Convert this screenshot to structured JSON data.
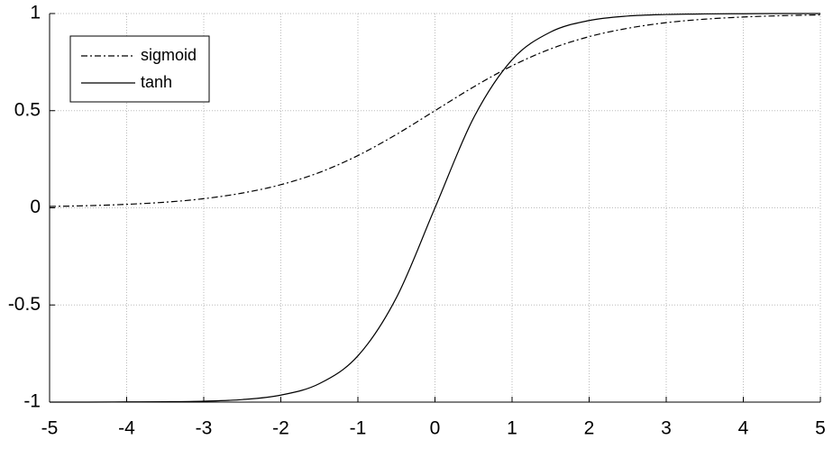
{
  "chart_data": {
    "type": "line",
    "x": [
      -5,
      -4.5,
      -4,
      -3.5,
      -3,
      -2.5,
      -2,
      -1.5,
      -1,
      -0.5,
      0,
      0.5,
      1,
      1.5,
      2,
      2.5,
      3,
      3.5,
      4,
      4.5,
      5
    ],
    "series": [
      {
        "name": "sigmoid",
        "color": "#000000",
        "dash": "dashdot",
        "values": [
          0.007,
          0.011,
          0.018,
          0.029,
          0.047,
          0.076,
          0.119,
          0.182,
          0.269,
          0.378,
          0.5,
          0.622,
          0.731,
          0.818,
          0.881,
          0.924,
          0.953,
          0.971,
          0.982,
          0.989,
          0.993
        ]
      },
      {
        "name": "tanh",
        "color": "#000000",
        "dash": "solid",
        "values": [
          -1,
          -1,
          -0.999,
          -0.998,
          -0.995,
          -0.987,
          -0.964,
          -0.905,
          -0.762,
          -0.462,
          0,
          0.462,
          0.762,
          0.905,
          0.964,
          0.987,
          0.995,
          0.998,
          0.999,
          1,
          1
        ]
      }
    ],
    "xlim": [
      -5,
      5
    ],
    "ylim": [
      -1,
      1
    ],
    "xticks": [
      -5,
      -4,
      -3,
      -2,
      -1,
      0,
      1,
      2,
      3,
      4,
      5
    ],
    "yticks": [
      -1,
      -0.5,
      0,
      0.5,
      1
    ],
    "grid": true,
    "legend": "upper-left"
  }
}
